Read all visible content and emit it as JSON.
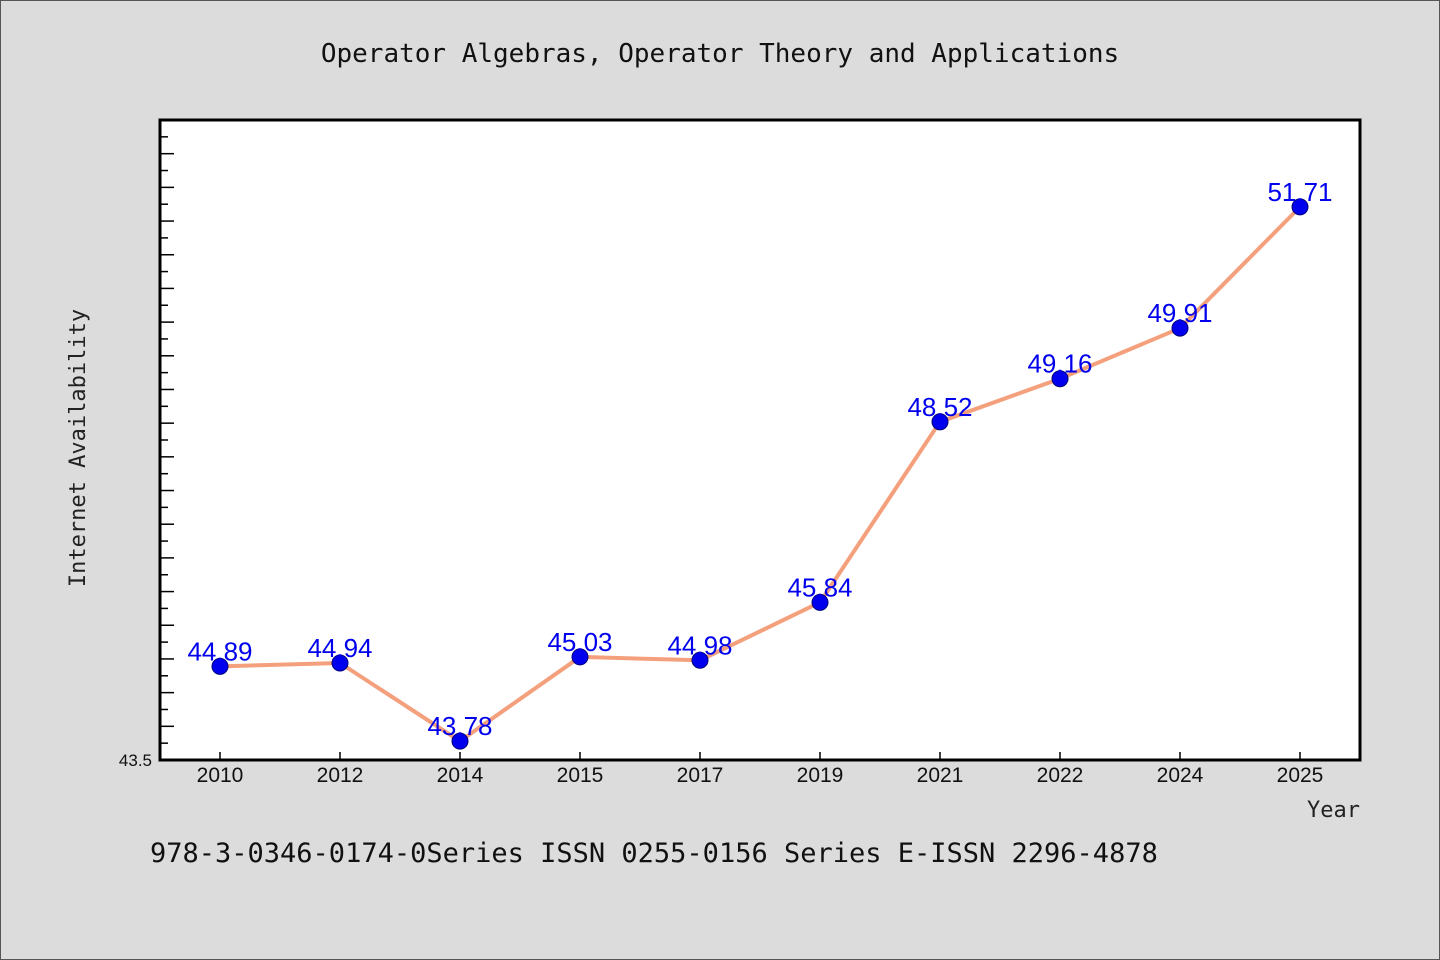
{
  "chart_data": {
    "type": "line",
    "title": "Operator Algebras, Operator Theory and Applications",
    "xlabel": "Year",
    "ylabel": "Internet Availability",
    "categories": [
      "2010",
      "2012",
      "2014",
      "2015",
      "2017",
      "2019",
      "2021",
      "2022",
      "2024",
      "2025"
    ],
    "series": [
      {
        "values": [
          44.89,
          44.94,
          43.78,
          45.03,
          44.98,
          45.84,
          48.52,
          49.16,
          49.91,
          51.71
        ]
      }
    ],
    "data_labels": [
      "44.89",
      "44.94",
      "43.78",
      "45.03",
      "44.98",
      "45.84",
      "48.52",
      "49.16",
      "49.91",
      "51.71"
    ],
    "ylim": [
      43.5,
      53.0
    ],
    "y_min_label": "43.5",
    "grid": false,
    "line_color": "#f4a07c",
    "marker_color": "#0000ee",
    "label_color": "#0000ee"
  },
  "footer": {
    "text": "978-3-0346-0174-0Series ISSN 0255-0156 Series E-ISSN 2296-4878"
  }
}
